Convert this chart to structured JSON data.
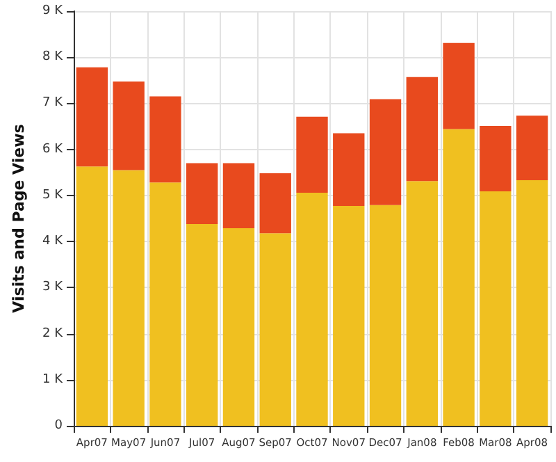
{
  "chart_data": {
    "type": "bar",
    "stacked": true,
    "ylabel": "Visits and Page Views",
    "categories": [
      "Apr07",
      "May07",
      "Jun07",
      "Jul07",
      "Aug07",
      "Sep07",
      "Oct07",
      "Nov07",
      "Dec07",
      "Jan08",
      "Feb08",
      "Mar08",
      "Apr08"
    ],
    "series": [
      {
        "color": "#f0c020",
        "values": [
          5630,
          5550,
          5280,
          4380,
          4290,
          4180,
          5060,
          4770,
          4790,
          5310,
          6440,
          5090,
          5330
        ]
      },
      {
        "color": "#e84a1e",
        "values": [
          2150,
          1920,
          1870,
          1320,
          1410,
          1300,
          1650,
          1580,
          2300,
          2260,
          1870,
          1420,
          1400
        ]
      }
    ],
    "ylim": [
      0,
      9000
    ],
    "yticks": [
      0,
      {
        "value": 1000,
        "label": "1 K"
      },
      {
        "value": 2000,
        "label": "2 K"
      },
      {
        "value": 3000,
        "label": "3 K"
      },
      {
        "value": 4000,
        "label": "4 K"
      },
      {
        "value": 5000,
        "label": "5 K"
      },
      {
        "value": 6000,
        "label": "6 K"
      },
      {
        "value": 7000,
        "label": "7 K"
      },
      {
        "value": 8000,
        "label": "8 K"
      },
      {
        "value": 9000,
        "label": "9 K"
      }
    ],
    "grid": true
  }
}
